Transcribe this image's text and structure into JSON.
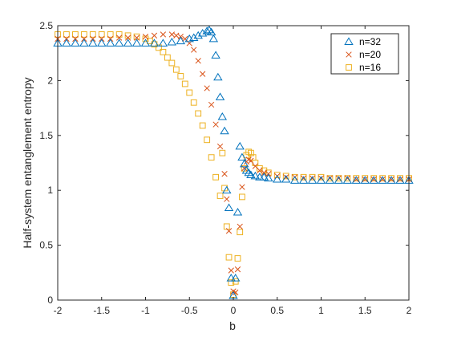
{
  "chart_data": {
    "type": "scatter",
    "xlabel": "b",
    "ylabel": "Half-system entanglement entropy",
    "xlim": [
      -2,
      2
    ],
    "ylim": [
      0,
      2.5
    ],
    "xticks": [
      -2,
      -1.5,
      -1,
      -0.5,
      0,
      0.5,
      1,
      1.5,
      2
    ],
    "xtick_labels": [
      "-2",
      "-1.5",
      "-1",
      "-0.5",
      "0",
      "0.5",
      "1",
      "1.5",
      "2"
    ],
    "yticks": [
      0,
      0.5,
      1,
      1.5,
      2,
      2.5
    ],
    "ytick_labels": [
      "0",
      "0.5",
      "1",
      "1.5",
      "2",
      "2.5"
    ],
    "legend_position": "top-right",
    "series": [
      {
        "name": "n=32",
        "marker": "triangle",
        "color": "#0072BD",
        "points": [
          [
            -2.0,
            2.34
          ],
          [
            -1.9,
            2.34
          ],
          [
            -1.8,
            2.34
          ],
          [
            -1.7,
            2.34
          ],
          [
            -1.6,
            2.34
          ],
          [
            -1.5,
            2.34
          ],
          [
            -1.4,
            2.34
          ],
          [
            -1.3,
            2.34
          ],
          [
            -1.2,
            2.34
          ],
          [
            -1.1,
            2.34
          ],
          [
            -1.0,
            2.34
          ],
          [
            -0.9,
            2.34
          ],
          [
            -0.8,
            2.34
          ],
          [
            -0.7,
            2.35
          ],
          [
            -0.6,
            2.36
          ],
          [
            -0.5,
            2.38
          ],
          [
            -0.45,
            2.39
          ],
          [
            -0.4,
            2.41
          ],
          [
            -0.35,
            2.43
          ],
          [
            -0.3,
            2.45
          ],
          [
            -0.275,
            2.46
          ],
          [
            -0.25,
            2.44
          ],
          [
            -0.225,
            2.38
          ],
          [
            -0.2,
            2.23
          ],
          [
            -0.175,
            2.03
          ],
          [
            -0.15,
            1.85
          ],
          [
            -0.125,
            1.67
          ],
          [
            -0.1,
            1.54
          ],
          [
            -0.075,
            1.0
          ],
          [
            -0.05,
            0.84
          ],
          [
            -0.025,
            0.2
          ],
          [
            0.0,
            0.04
          ],
          [
            0.025,
            0.2
          ],
          [
            0.05,
            0.8
          ],
          [
            0.075,
            1.4
          ],
          [
            0.1,
            1.3
          ],
          [
            0.125,
            1.24
          ],
          [
            0.15,
            1.18
          ],
          [
            0.175,
            1.16
          ],
          [
            0.2,
            1.14
          ],
          [
            0.25,
            1.13
          ],
          [
            0.3,
            1.12
          ],
          [
            0.35,
            1.12
          ],
          [
            0.4,
            1.11
          ],
          [
            0.5,
            1.1
          ],
          [
            0.6,
            1.1
          ],
          [
            0.7,
            1.09
          ],
          [
            0.8,
            1.09
          ],
          [
            0.9,
            1.09
          ],
          [
            1.0,
            1.09
          ],
          [
            1.1,
            1.09
          ],
          [
            1.2,
            1.09
          ],
          [
            1.3,
            1.09
          ],
          [
            1.4,
            1.09
          ],
          [
            1.5,
            1.09
          ],
          [
            1.6,
            1.09
          ],
          [
            1.7,
            1.09
          ],
          [
            1.8,
            1.09
          ],
          [
            1.9,
            1.09
          ],
          [
            2.0,
            1.09
          ]
        ]
      },
      {
        "name": "n=20",
        "marker": "x",
        "color": "#D95319",
        "points": [
          [
            -2.0,
            2.38
          ],
          [
            -1.9,
            2.38
          ],
          [
            -1.8,
            2.38
          ],
          [
            -1.7,
            2.38
          ],
          [
            -1.6,
            2.38
          ],
          [
            -1.5,
            2.38
          ],
          [
            -1.4,
            2.38
          ],
          [
            -1.3,
            2.39
          ],
          [
            -1.2,
            2.39
          ],
          [
            -1.1,
            2.39
          ],
          [
            -1.0,
            2.4
          ],
          [
            -0.9,
            2.41
          ],
          [
            -0.8,
            2.42
          ],
          [
            -0.7,
            2.42
          ],
          [
            -0.65,
            2.41
          ],
          [
            -0.6,
            2.4
          ],
          [
            -0.55,
            2.38
          ],
          [
            -0.5,
            2.34
          ],
          [
            -0.45,
            2.28
          ],
          [
            -0.4,
            2.18
          ],
          [
            -0.35,
            2.06
          ],
          [
            -0.3,
            1.93
          ],
          [
            -0.25,
            1.78
          ],
          [
            -0.2,
            1.6
          ],
          [
            -0.15,
            1.4
          ],
          [
            -0.1,
            1.15
          ],
          [
            -0.075,
            0.92
          ],
          [
            -0.05,
            0.63
          ],
          [
            -0.025,
            0.27
          ],
          [
            0.0,
            0.08
          ],
          [
            0.025,
            0.07
          ],
          [
            0.05,
            0.28
          ],
          [
            0.075,
            0.67
          ],
          [
            0.1,
            1.03
          ],
          [
            0.125,
            1.2
          ],
          [
            0.15,
            1.26
          ],
          [
            0.175,
            1.28
          ],
          [
            0.2,
            1.27
          ],
          [
            0.25,
            1.22
          ],
          [
            0.3,
            1.18
          ],
          [
            0.35,
            1.16
          ],
          [
            0.4,
            1.15
          ],
          [
            0.5,
            1.13
          ],
          [
            0.6,
            1.12
          ],
          [
            0.7,
            1.12
          ],
          [
            0.8,
            1.11
          ],
          [
            0.9,
            1.11
          ],
          [
            1.0,
            1.11
          ],
          [
            1.1,
            1.11
          ],
          [
            1.2,
            1.11
          ],
          [
            1.3,
            1.11
          ],
          [
            1.4,
            1.1
          ],
          [
            1.5,
            1.1
          ],
          [
            1.6,
            1.1
          ],
          [
            1.7,
            1.1
          ],
          [
            1.8,
            1.1
          ],
          [
            1.9,
            1.1
          ],
          [
            2.0,
            1.1
          ]
        ]
      },
      {
        "name": "n=16",
        "marker": "square",
        "color": "#EDB120",
        "points": [
          [
            -2.0,
            2.42
          ],
          [
            -1.9,
            2.42
          ],
          [
            -1.8,
            2.42
          ],
          [
            -1.7,
            2.42
          ],
          [
            -1.6,
            2.42
          ],
          [
            -1.5,
            2.42
          ],
          [
            -1.4,
            2.42
          ],
          [
            -1.3,
            2.42
          ],
          [
            -1.2,
            2.41
          ],
          [
            -1.1,
            2.4
          ],
          [
            -1.0,
            2.38
          ],
          [
            -0.95,
            2.36
          ],
          [
            -0.9,
            2.33
          ],
          [
            -0.85,
            2.3
          ],
          [
            -0.8,
            2.26
          ],
          [
            -0.75,
            2.21
          ],
          [
            -0.7,
            2.16
          ],
          [
            -0.65,
            2.1
          ],
          [
            -0.6,
            2.04
          ],
          [
            -0.55,
            1.97
          ],
          [
            -0.5,
            1.89
          ],
          [
            -0.45,
            1.8
          ],
          [
            -0.4,
            1.7
          ],
          [
            -0.35,
            1.59
          ],
          [
            -0.3,
            1.46
          ],
          [
            -0.25,
            1.3
          ],
          [
            -0.2,
            1.12
          ],
          [
            -0.15,
            0.95
          ],
          [
            -0.125,
            1.34
          ],
          [
            -0.1,
            1.02
          ],
          [
            -0.075,
            0.67
          ],
          [
            -0.05,
            0.39
          ],
          [
            -0.025,
            0.16
          ],
          [
            0.0,
            0.05
          ],
          [
            0.025,
            0.17
          ],
          [
            0.05,
            0.38
          ],
          [
            0.075,
            0.62
          ],
          [
            0.1,
            0.94
          ],
          [
            0.125,
            1.2
          ],
          [
            0.15,
            1.32
          ],
          [
            0.175,
            1.35
          ],
          [
            0.2,
            1.34
          ],
          [
            0.225,
            1.3
          ],
          [
            0.25,
            1.25
          ],
          [
            0.3,
            1.2
          ],
          [
            0.35,
            1.18
          ],
          [
            0.4,
            1.16
          ],
          [
            0.5,
            1.14
          ],
          [
            0.6,
            1.13
          ],
          [
            0.7,
            1.12
          ],
          [
            0.8,
            1.12
          ],
          [
            0.9,
            1.12
          ],
          [
            1.0,
            1.12
          ],
          [
            1.1,
            1.11
          ],
          [
            1.2,
            1.11
          ],
          [
            1.3,
            1.11
          ],
          [
            1.4,
            1.11
          ],
          [
            1.5,
            1.11
          ],
          [
            1.6,
            1.11
          ],
          [
            1.7,
            1.11
          ],
          [
            1.8,
            1.11
          ],
          [
            1.9,
            1.11
          ],
          [
            2.0,
            1.11
          ]
        ]
      }
    ]
  }
}
